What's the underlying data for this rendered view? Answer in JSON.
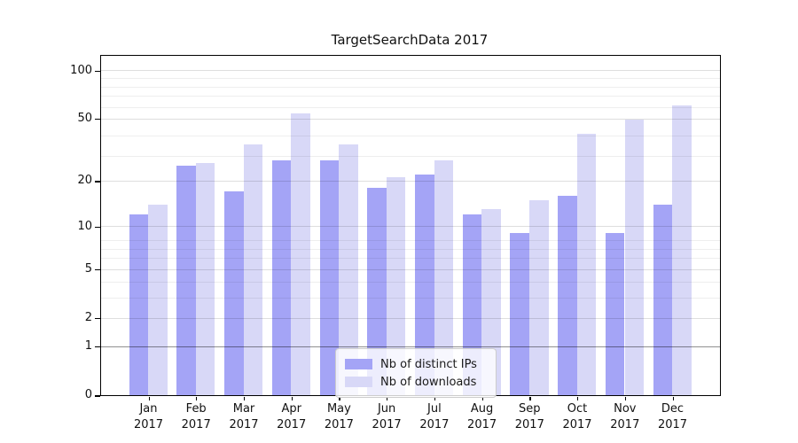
{
  "chart_data": {
    "type": "bar",
    "title": "TargetSearchData 2017",
    "x_tick_year": "2017",
    "categories": [
      "Jan",
      "Feb",
      "Mar",
      "Apr",
      "May",
      "Jun",
      "Jul",
      "Aug",
      "Sep",
      "Oct",
      "Nov",
      "Dec"
    ],
    "series": [
      {
        "name": "Nb of distinct IPs",
        "color": "#a4a4f6",
        "values": [
          12,
          25,
          17,
          27,
          27,
          18,
          22,
          12,
          9,
          16,
          9,
          14
        ]
      },
      {
        "name": "Nb of downloads",
        "color": "#d8d8f7",
        "values": [
          14,
          26,
          34,
          54,
          34,
          21,
          27,
          13,
          15,
          40,
          49,
          60
        ]
      }
    ],
    "y_scale": "log10(1+y)",
    "y_major_ticks": [
      0,
      1,
      2,
      5,
      10,
      20,
      50,
      100
    ],
    "y_minor_gridlines": [
      3,
      4,
      6,
      7,
      8,
      29,
      39,
      59,
      69,
      79,
      89
    ],
    "reference_line_y": 1,
    "ylim_top": 123,
    "grid": "on",
    "legend_position": "lower center"
  }
}
